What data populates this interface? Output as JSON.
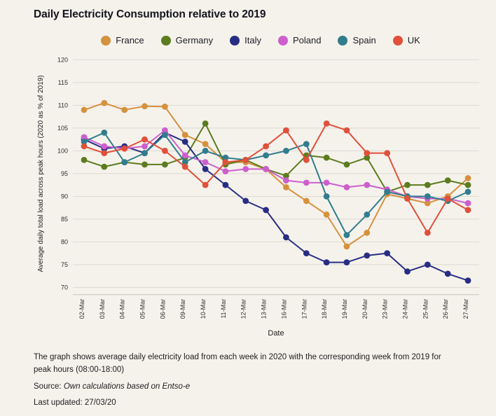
{
  "page": {
    "title": "Daily Electricity Consumption relative to 2019",
    "footnote_description": "The graph shows average daily electricity load from each week in 2020 with the corresponding week from 2019 for peak hours (08:00-18:00)",
    "source_label": "Source: ",
    "source_text": "Own calculations based on Entso-e",
    "last_updated": "Last updated: 27/03/20"
  },
  "chart_data": {
    "type": "line",
    "title": "Daily Electricity Consumption relative to 2019",
    "xlabel": "Date",
    "ylabel": "Average daily total load across peak hours (2020 as % of 2019)",
    "ylim": [
      70,
      120
    ],
    "ytick_step": 5,
    "grid": true,
    "legend_position": "top",
    "marker": "circle",
    "background": "#f5f2ec",
    "gridline_color": "#dcd9d2",
    "categories": [
      "02-Mar",
      "03-Mar",
      "04-Mar",
      "05-Mar",
      "06-Mar",
      "09-Mar",
      "10-Mar",
      "11-Mar",
      "12-Mar",
      "13-Mar",
      "16-Mar",
      "17-Mar",
      "18-Mar",
      "19-Mar",
      "20-Mar",
      "23-Mar",
      "24-Mar",
      "25-Mar",
      "26-Mar",
      "27-Mar"
    ],
    "series": [
      {
        "name": "France",
        "color": "#d6913d",
        "values": [
          109,
          110.5,
          109,
          109.8,
          109.7,
          103.5,
          101.5,
          97.5,
          97.5,
          96,
          92,
          89,
          86,
          79,
          82,
          90.5,
          89.5,
          88.5,
          90,
          94
        ]
      },
      {
        "name": "Germany",
        "color": "#5c7c1e",
        "values": [
          98,
          96.5,
          97.5,
          97,
          97,
          98.5,
          106,
          97,
          98,
          96,
          94.5,
          99,
          98.5,
          97,
          98.5,
          91,
          92.5,
          92.5,
          93.5,
          92.5
        ]
      },
      {
        "name": "Italy",
        "color": "#282d84",
        "values": [
          102.5,
          100.5,
          101,
          99.5,
          104,
          102,
          96,
          92.5,
          89,
          87,
          81,
          77.5,
          75.5,
          75.5,
          77,
          77.5,
          73.5,
          75,
          73,
          71.5
        ]
      },
      {
        "name": "Poland",
        "color": "#cd5fcd",
        "values": [
          103,
          101,
          100.5,
          101,
          104.5,
          99,
          97.5,
          95.5,
          96,
          96,
          93.5,
          93,
          93,
          92,
          92.5,
          91.5,
          90,
          89.5,
          89.5,
          88.5
        ]
      },
      {
        "name": "Spain",
        "color": "#317d8d",
        "values": [
          102,
          104,
          97.5,
          99.5,
          103.5,
          97.5,
          100,
          98.5,
          98,
          99,
          100,
          101.5,
          90,
          81.5,
          86,
          91,
          90,
          90,
          89,
          91
        ]
      },
      {
        "name": "UK",
        "color": "#e0503a",
        "values": [
          101,
          99.5,
          100.5,
          102.5,
          100,
          96.5,
          92.5,
          97.5,
          98,
          101,
          104.5,
          98,
          106,
          104.5,
          99.5,
          99.5,
          89.5,
          82,
          89.5,
          87
        ]
      }
    ]
  }
}
